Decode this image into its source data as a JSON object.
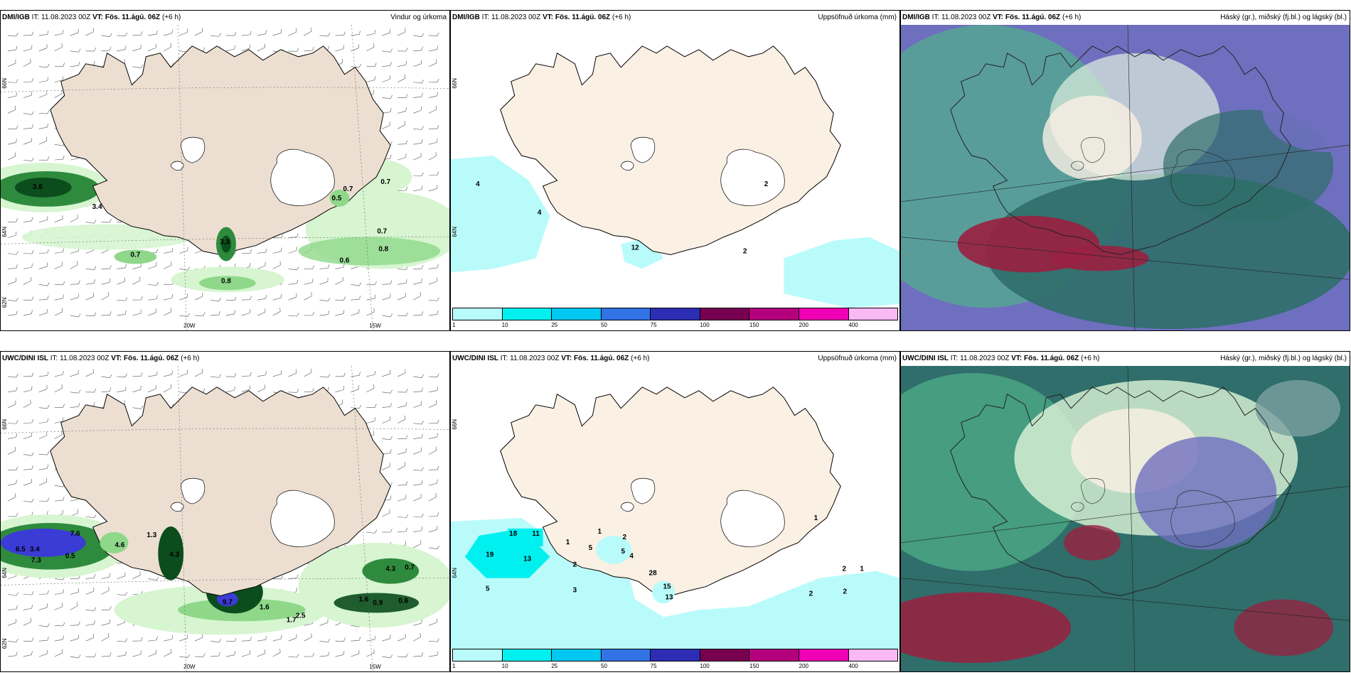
{
  "panels": [
    {
      "id": "p1",
      "model": "DMI/IGB",
      "it_label": "IT:",
      "it_value": "11.08.2023 00Z",
      "vt_label": "VT:",
      "vt_value": "Fös. 11.ágú. 06Z",
      "lead": "(+6 h)",
      "title": "Vindur og úrkoma",
      "lat_labels": [
        "66N",
        "64N",
        "62N"
      ],
      "lon_labels": [
        "20W",
        "15W"
      ],
      "values": [
        {
          "text": "3.6",
          "x": 52,
          "y": 232
        },
        {
          "text": "3.4",
          "x": 136,
          "y": 260
        },
        {
          "text": "0.7",
          "x": 190,
          "y": 328
        },
        {
          "text": "3.3",
          "x": 316,
          "y": 310
        },
        {
          "text": "0.8",
          "x": 318,
          "y": 365
        },
        {
          "text": "0.7",
          "x": 490,
          "y": 235
        },
        {
          "text": "0.5",
          "x": 474,
          "y": 248
        },
        {
          "text": "0.7",
          "x": 543,
          "y": 225
        },
        {
          "text": "0.7",
          "x": 538,
          "y": 295
        },
        {
          "text": "0.8",
          "x": 540,
          "y": 320
        },
        {
          "text": "0.6",
          "x": 485,
          "y": 336
        }
      ]
    },
    {
      "id": "p2",
      "model": "DMI/IGB",
      "it_label": "IT:",
      "it_value": "11.08.2023 00Z",
      "vt_label": "VT:",
      "vt_value": "Fös. 11.ágú. 06Z",
      "lead": "(+6 h)",
      "title": "Uppsöfnuð úrkoma (mm)",
      "lat_labels": [
        "66N",
        "64N"
      ],
      "values": [
        {
          "text": "4",
          "x": 38,
          "y": 228
        },
        {
          "text": "4",
          "x": 125,
          "y": 268
        },
        {
          "text": "2",
          "x": 445,
          "y": 228
        },
        {
          "text": "2",
          "x": 415,
          "y": 323
        },
        {
          "text": "12",
          "x": 260,
          "y": 318
        }
      ],
      "colorbar": {
        "colors": [
          "#b9fbfb",
          "#00f0f0",
          "#00c8f0",
          "#3273e6",
          "#2d2db4",
          "#780050",
          "#b4007d",
          "#f000b4",
          "#f9b9f5"
        ],
        "ticks": [
          "1",
          "10",
          "25",
          "50",
          "75",
          "100",
          "150",
          "200",
          "400"
        ]
      }
    },
    {
      "id": "p3",
      "model": "DMI/IGB",
      "it_label": "IT:",
      "it_value": "11.08.2023 00Z",
      "vt_label": "VT:",
      "vt_value": "Fös. 11.ágú. 06Z",
      "lead": "(+6 h)",
      "title": "Háský (gr.), miðský (fj.bl.) og lágský (bl.)"
    },
    {
      "id": "p4",
      "model": "UWC/DINI ISL",
      "it_label": "IT:",
      "it_value": "11.08.2023 00Z",
      "vt_label": "VT:",
      "vt_value": "Fös. 11.ágú. 06Z",
      "lead": "(+6 h)",
      "title": "",
      "lat_labels": [
        "66N",
        "64N",
        "62N"
      ],
      "lon_labels": [
        "20W",
        "15W"
      ],
      "values": [
        {
          "text": "7.6",
          "x": 105,
          "y": 240
        },
        {
          "text": "6.5",
          "x": 28,
          "y": 262
        },
        {
          "text": "3.4",
          "x": 48,
          "y": 262
        },
        {
          "text": "7.3",
          "x": 50,
          "y": 278
        },
        {
          "text": "0.5",
          "x": 98,
          "y": 272
        },
        {
          "text": "4.6",
          "x": 168,
          "y": 256
        },
        {
          "text": "1.3",
          "x": 213,
          "y": 242
        },
        {
          "text": "4.3",
          "x": 245,
          "y": 270
        },
        {
          "text": "9.7",
          "x": 320,
          "y": 337
        },
        {
          "text": "1.6",
          "x": 372,
          "y": 344
        },
        {
          "text": "2.5",
          "x": 423,
          "y": 356
        },
        {
          "text": "1.7",
          "x": 410,
          "y": 362
        },
        {
          "text": "4.3",
          "x": 550,
          "y": 290
        },
        {
          "text": "0.7",
          "x": 577,
          "y": 288
        },
        {
          "text": "1.6",
          "x": 512,
          "y": 333
        },
        {
          "text": "0.9",
          "x": 532,
          "y": 338
        },
        {
          "text": "0.6",
          "x": 568,
          "y": 335
        }
      ]
    },
    {
      "id": "p5",
      "model": "UWC/DINI ISL",
      "it_label": "IT:",
      "it_value": "11.08.2023 00Z",
      "vt_label": "VT:",
      "vt_value": "Fös. 11.ágú. 06Z",
      "lead": "(+6 h)",
      "title": "Uppsöfnuð úrkoma (mm)",
      "lat_labels": [
        "66N",
        "64N"
      ],
      "values": [
        {
          "text": "18",
          "x": 88,
          "y": 240
        },
        {
          "text": "11",
          "x": 120,
          "y": 240
        },
        {
          "text": "19",
          "x": 55,
          "y": 270
        },
        {
          "text": "13",
          "x": 108,
          "y": 276
        },
        {
          "text": "5",
          "x": 52,
          "y": 318
        },
        {
          "text": "3",
          "x": 175,
          "y": 320
        },
        {
          "text": "2",
          "x": 175,
          "y": 284
        },
        {
          "text": "5",
          "x": 197,
          "y": 260
        },
        {
          "text": "2",
          "x": 245,
          "y": 245
        },
        {
          "text": "5",
          "x": 243,
          "y": 265
        },
        {
          "text": "4",
          "x": 255,
          "y": 272
        },
        {
          "text": "1",
          "x": 210,
          "y": 237
        },
        {
          "text": "1",
          "x": 165,
          "y": 252
        },
        {
          "text": "28",
          "x": 285,
          "y": 296
        },
        {
          "text": "15",
          "x": 305,
          "y": 315
        },
        {
          "text": "13",
          "x": 308,
          "y": 330
        },
        {
          "text": "1",
          "x": 515,
          "y": 218
        },
        {
          "text": "2",
          "x": 555,
          "y": 290
        },
        {
          "text": "1",
          "x": 580,
          "y": 290
        },
        {
          "text": "2",
          "x": 508,
          "y": 325
        },
        {
          "text": "2",
          "x": 556,
          "y": 322
        }
      ],
      "colorbar": {
        "colors": [
          "#b9fbfb",
          "#00f0f0",
          "#00c8f0",
          "#3273e6",
          "#2d2db4",
          "#780050",
          "#b4007d",
          "#f000b4",
          "#f9b9f5"
        ],
        "ticks": [
          "1",
          "10",
          "25",
          "50",
          "75",
          "100",
          "150",
          "200",
          "400"
        ]
      }
    },
    {
      "id": "p6",
      "model": "UWC/DINI ISL",
      "it_label": "IT:",
      "it_value": "11.08.2023 00Z",
      "vt_label": "VT:",
      "vt_value": "Fös. 11.ágú. 06Z",
      "lead": "(+6 h)",
      "title": "Háský (gr.), miðský (fj.bl.) og lágský (bl.)"
    }
  ],
  "colors": {
    "land": "#faf0e4",
    "ice": "#ffffff",
    "precip_light": "#d6f5d0",
    "precip_mid": "#8fd88a",
    "precip_heavy": "#2e8b3d",
    "precip_dark": "#0b4d1c",
    "precip_blue": "#3b3bd6",
    "accum_light": "#b9fbfb",
    "accum_mid": "#00f0f0",
    "cloud_high": "#6f6fbf",
    "cloud_mid": "#2f6e6a",
    "cloud_low": "#50b08a",
    "cloud_red": "#9a2040"
  }
}
